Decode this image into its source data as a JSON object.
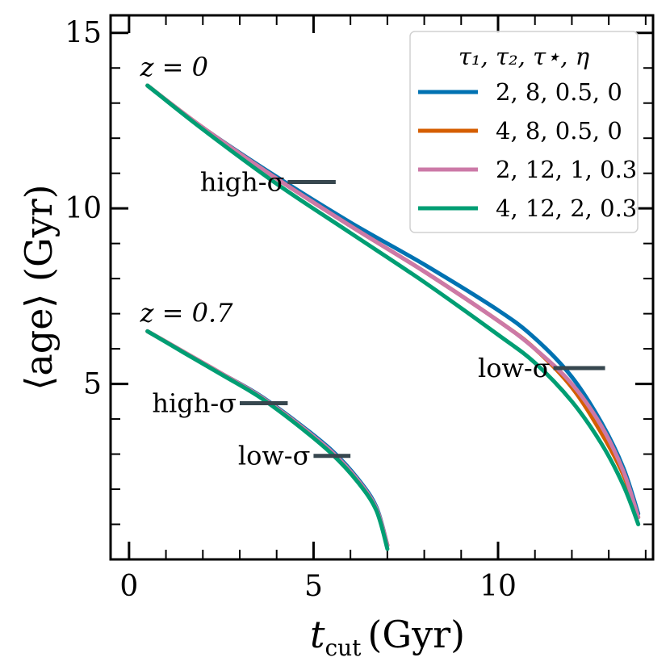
{
  "chart_data": {
    "type": "line",
    "xlabel_main": "t",
    "xlabel_sub": "cut",
    "xlabel_unit": "(Gyr)",
    "ylabel": "⟨age⟩ (Gyr)",
    "xlim": [
      -0.5,
      14.2
    ],
    "ylim": [
      0.0,
      15.5
    ],
    "xticks": [
      0,
      5,
      10
    ],
    "yticks": [
      5,
      10,
      15
    ],
    "legend": {
      "title": "τ₁, τ₂, τ⋆, η",
      "position": "top-right",
      "entries": [
        {
          "label": "2, 8, 0.5, 0",
          "color": "#0072b2"
        },
        {
          "label": "4, 8, 0.5, 0",
          "color": "#d55e00"
        },
        {
          "label": "2, 12, 1, 0.3",
          "color": "#cc79a7"
        },
        {
          "label": "4, 12, 2, 0.3",
          "color": "#009e73"
        }
      ]
    },
    "series": [
      {
        "name": "2, 8, 0.5, 0 (z=0)",
        "color": "#0072b2",
        "x": [
          0.5,
          2,
          4,
          6,
          8,
          10,
          11,
          12,
          12.8,
          13.4,
          13.8
        ],
        "y": [
          13.5,
          12.3,
          10.9,
          9.6,
          8.4,
          7.1,
          6.3,
          5.2,
          3.9,
          2.6,
          1.3
        ]
      },
      {
        "name": "4, 8, 0.5, 0 (z=0)",
        "color": "#d55e00",
        "x": [
          0.5,
          2,
          4,
          6,
          8,
          10,
          11,
          12,
          12.8,
          13.4,
          13.8
        ],
        "y": [
          13.5,
          12.3,
          10.85,
          9.5,
          8.2,
          6.8,
          6.0,
          4.9,
          3.6,
          2.4,
          1.2
        ]
      },
      {
        "name": "2, 12, 1, 0.3 (z=0)",
        "color": "#cc79a7",
        "x": [
          0.5,
          2,
          4,
          6,
          8,
          10,
          11,
          12,
          12.8,
          13.4,
          13.8
        ],
        "y": [
          13.5,
          12.3,
          10.85,
          9.5,
          8.2,
          6.8,
          6.0,
          5.0,
          3.8,
          2.5,
          1.2
        ]
      },
      {
        "name": "4, 12, 2, 0.3 (z=0)",
        "color": "#009e73",
        "x": [
          0.5,
          2,
          4,
          6,
          8,
          10,
          11,
          12,
          12.8,
          13.4,
          13.8
        ],
        "y": [
          13.5,
          12.25,
          10.7,
          9.3,
          7.9,
          6.4,
          5.6,
          4.5,
          3.3,
          2.1,
          1.0
        ]
      },
      {
        "name": "2, 8, 0.5, 0 (z=0.7)",
        "color": "#0072b2",
        "x": [
          0.5,
          1.5,
          2.5,
          3.5,
          4.5,
          5.5,
          6.2,
          6.7,
          7.0
        ],
        "y": [
          6.5,
          5.9,
          5.3,
          4.7,
          3.95,
          3.1,
          2.3,
          1.5,
          0.4
        ]
      },
      {
        "name": "4, 8, 0.5, 0 (z=0.7)",
        "color": "#d55e00",
        "x": [
          0.5,
          1.5,
          2.5,
          3.5,
          4.5,
          5.5,
          6.2,
          6.7,
          7.0
        ],
        "y": [
          6.5,
          5.9,
          5.3,
          4.68,
          3.92,
          3.05,
          2.25,
          1.45,
          0.4
        ]
      },
      {
        "name": "2, 12, 1, 0.3 (z=0.7)",
        "color": "#cc79a7",
        "x": [
          0.5,
          1.5,
          2.5,
          3.5,
          4.5,
          5.5,
          6.2,
          6.7,
          7.0
        ],
        "y": [
          6.5,
          5.9,
          5.3,
          4.68,
          3.92,
          3.06,
          2.26,
          1.46,
          0.4
        ]
      },
      {
        "name": "4, 12, 2, 0.3 (z=0.7)",
        "color": "#009e73",
        "x": [
          0.5,
          1.5,
          2.5,
          3.5,
          4.5,
          5.5,
          6.2,
          6.7,
          7.0
        ],
        "y": [
          6.5,
          5.88,
          5.27,
          4.65,
          3.88,
          3.0,
          2.2,
          1.4,
          0.3
        ]
      }
    ],
    "markers": [
      {
        "label": "high-σ",
        "x0": 4.3,
        "x1": 5.6,
        "y": 10.75
      },
      {
        "label": "low-σ",
        "x0": 11.5,
        "x1": 12.9,
        "y": 5.45
      },
      {
        "label": "high-σ",
        "x0": 3.0,
        "x1": 4.3,
        "y": 4.45
      },
      {
        "label": "low-σ",
        "x0": 5.0,
        "x1": 6.0,
        "y": 2.95
      }
    ],
    "annotations": [
      {
        "text": "z = 0",
        "x": 0.3,
        "y": 14.0
      },
      {
        "text": "z = 0.7",
        "x": 0.3,
        "y": 7.0
      }
    ],
    "marker_color": "#37474f"
  }
}
